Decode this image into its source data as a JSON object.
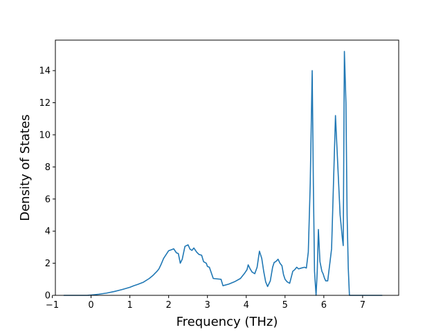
{
  "chart_data": {
    "type": "line",
    "title": "",
    "xlabel": "Frequency (THz)",
    "ylabel": "Density of States",
    "xlim": [
      -0.92,
      7.93
    ],
    "ylim": [
      0,
      15.9
    ],
    "grid": false,
    "legend": "none",
    "line_color": "#1f77b4",
    "xticks": [
      -1,
      0,
      1,
      2,
      3,
      4,
      5,
      6,
      7
    ],
    "yticks": [
      0,
      2,
      4,
      6,
      8,
      10,
      12,
      14
    ],
    "xtick_labels": [
      "−1",
      "0",
      "1",
      "2",
      "3",
      "4",
      "5",
      "6",
      "7"
    ],
    "ytick_labels": [
      "0",
      "2",
      "4",
      "6",
      "8",
      "10",
      "12",
      "14"
    ],
    "series": [
      {
        "x": [
          -0.7,
          -0.4,
          -0.1,
          0.0,
          0.2,
          0.4,
          0.6,
          0.8,
          1.0,
          1.1,
          1.2,
          1.35,
          1.5,
          1.6,
          1.7,
          1.75,
          1.8,
          1.87,
          2.0,
          2.08,
          2.13,
          2.2,
          2.25,
          2.3,
          2.35,
          2.42,
          2.5,
          2.55,
          2.6,
          2.65,
          2.72,
          2.78,
          2.85,
          2.9,
          2.97,
          3.0,
          3.05,
          3.15,
          3.35,
          3.4,
          3.55,
          3.7,
          3.85,
          3.95,
          4.02,
          4.05,
          4.1,
          4.15,
          4.22,
          4.28,
          4.34,
          4.4,
          4.45,
          4.5,
          4.55,
          4.62,
          4.68,
          4.72,
          4.76,
          4.82,
          4.87,
          4.92,
          4.96,
          5.0,
          5.05,
          5.12,
          5.2,
          5.25,
          5.3,
          5.35,
          5.42,
          5.5,
          5.55,
          5.6,
          5.65,
          5.7,
          5.73,
          5.76,
          5.8,
          5.83,
          5.86,
          5.9,
          5.95,
          5.98,
          6.0,
          6.02,
          6.05,
          6.1,
          6.2,
          6.3,
          6.42,
          6.48,
          6.5,
          6.53,
          6.57,
          6.6,
          6.63,
          6.66,
          6.7,
          6.74,
          6.78,
          6.83,
          7.0,
          7.5
        ],
        "y": [
          0.0,
          0.0,
          0.0,
          0.02,
          0.07,
          0.14,
          0.24,
          0.36,
          0.5,
          0.6,
          0.68,
          0.82,
          1.05,
          1.25,
          1.5,
          1.65,
          1.9,
          2.3,
          2.78,
          2.85,
          2.9,
          2.65,
          2.6,
          2.0,
          2.25,
          3.05,
          3.15,
          2.88,
          2.8,
          2.95,
          2.7,
          2.55,
          2.5,
          2.1,
          2.0,
          1.8,
          1.75,
          1.05,
          1.0,
          0.6,
          0.7,
          0.85,
          1.05,
          1.35,
          1.6,
          1.9,
          1.65,
          1.45,
          1.35,
          1.75,
          2.75,
          2.3,
          1.5,
          0.85,
          0.55,
          0.9,
          1.75,
          2.05,
          2.1,
          2.25,
          2.0,
          1.85,
          1.3,
          1.0,
          0.85,
          0.75,
          1.5,
          1.6,
          1.75,
          1.65,
          1.7,
          1.75,
          1.7,
          2.7,
          7.0,
          14.0,
          7.0,
          1.5,
          0.0,
          1.5,
          4.1,
          2.1,
          1.5,
          1.35,
          1.2,
          1.05,
          0.9,
          0.9,
          2.9,
          11.2,
          5.0,
          3.5,
          3.1,
          15.2,
          12.0,
          5.0,
          1.7,
          0.0,
          0.0,
          0.0,
          0.0,
          0.0,
          0.0,
          0.0
        ]
      }
    ]
  }
}
